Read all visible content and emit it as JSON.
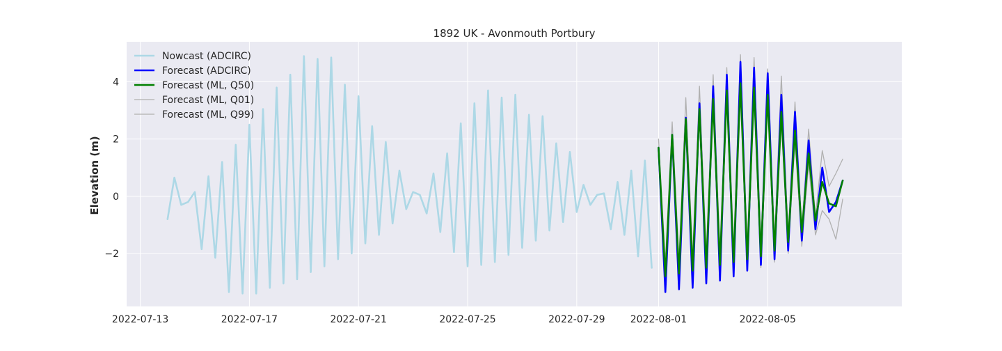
{
  "chart_data": {
    "type": "line",
    "title": "1892 UK - Avonmouth Portbury",
    "xlabel": "",
    "ylabel": "Elevation (m)",
    "xlim": [
      "2022-07-12T12:00",
      "2022-08-09T22:00"
    ],
    "ylim": [
      -3.85,
      5.4
    ],
    "grid": true,
    "legend_position": "top-left",
    "x_ticks": [
      "2022-07-13",
      "2022-07-17",
      "2022-07-21",
      "2022-07-25",
      "2022-07-29",
      "2022-08-01",
      "2022-08-05"
    ],
    "y_ticks": [
      -2,
      0,
      2,
      4
    ],
    "colors": {
      "background": "#eaeaf2",
      "grid": "#ffffff",
      "nowcast": "#add8e6",
      "forecast_adcirc": "#0000ff",
      "forecast_q50": "#008000",
      "quantiles": "#b0b0b0"
    },
    "series": [
      {
        "name": "Nowcast (ADCIRC)",
        "x": [
          "2022-07-14T00:00",
          "2022-07-14T06:00",
          "2022-07-14T12:00",
          "2022-07-14T18:00",
          "2022-07-15T00:00",
          "2022-07-15T06:00",
          "2022-07-15T12:00",
          "2022-07-15T18:00",
          "2022-07-16T00:00",
          "2022-07-16T06:00",
          "2022-07-16T12:00",
          "2022-07-16T18:00",
          "2022-07-17T00:00",
          "2022-07-17T06:00",
          "2022-07-17T12:00",
          "2022-07-17T18:00",
          "2022-07-18T00:00",
          "2022-07-18T06:00",
          "2022-07-18T12:00",
          "2022-07-18T18:00",
          "2022-07-19T00:00",
          "2022-07-19T06:00",
          "2022-07-19T12:00",
          "2022-07-19T18:00",
          "2022-07-20T00:00",
          "2022-07-20T06:00",
          "2022-07-20T12:00",
          "2022-07-20T18:00",
          "2022-07-21T00:00",
          "2022-07-21T06:00",
          "2022-07-21T12:00",
          "2022-07-21T18:00",
          "2022-07-22T00:00",
          "2022-07-22T06:00",
          "2022-07-22T12:00",
          "2022-07-22T18:00",
          "2022-07-23T00:00",
          "2022-07-23T06:00",
          "2022-07-23T12:00",
          "2022-07-23T18:00",
          "2022-07-24T00:00",
          "2022-07-24T06:00",
          "2022-07-24T12:00",
          "2022-07-24T18:00",
          "2022-07-25T00:00",
          "2022-07-25T06:00",
          "2022-07-25T12:00",
          "2022-07-25T18:00",
          "2022-07-26T00:00",
          "2022-07-26T06:00",
          "2022-07-26T12:00",
          "2022-07-26T18:00",
          "2022-07-27T00:00",
          "2022-07-27T06:00",
          "2022-07-27T12:00",
          "2022-07-27T18:00",
          "2022-07-28T00:00",
          "2022-07-28T06:00",
          "2022-07-28T12:00",
          "2022-07-28T18:00",
          "2022-07-29T00:00",
          "2022-07-29T06:00",
          "2022-07-29T12:00",
          "2022-07-29T18:00",
          "2022-07-30T00:00",
          "2022-07-30T06:00",
          "2022-07-30T12:00",
          "2022-07-30T18:00",
          "2022-07-31T00:00",
          "2022-07-31T06:00",
          "2022-07-31T12:00",
          "2022-07-31T18:00"
        ],
        "values": [
          -0.8,
          0.65,
          -0.3,
          -0.2,
          0.15,
          -1.85,
          0.7,
          -2.15,
          1.2,
          -3.35,
          1.8,
          -3.4,
          2.5,
          -3.4,
          3.05,
          -3.2,
          3.8,
          -3.05,
          4.25,
          -2.9,
          4.9,
          -2.65,
          4.8,
          -2.45,
          4.85,
          -2.2,
          3.9,
          -2.0,
          3.5,
          -1.65,
          2.45,
          -1.35,
          1.9,
          -0.95,
          0.9,
          -0.45,
          0.15,
          0.05,
          -0.6,
          0.8,
          -1.25,
          1.5,
          -1.95,
          2.55,
          -2.45,
          3.25,
          -2.4,
          3.7,
          -2.3,
          3.45,
          -2.05,
          3.55,
          -1.8,
          2.85,
          -1.55,
          2.8,
          -1.2,
          1.85,
          -0.9,
          1.55,
          -0.55,
          0.4,
          -0.3,
          0.05,
          0.1,
          -1.15,
          0.5,
          -1.35,
          0.9,
          -2.1,
          1.25,
          -2.5
        ]
      },
      {
        "name": "Forecast (ADCIRC)",
        "x": [
          "2022-08-01T00:00",
          "2022-08-01T06:00",
          "2022-08-01T12:00",
          "2022-08-01T18:00",
          "2022-08-02T00:00",
          "2022-08-02T06:00",
          "2022-08-02T12:00",
          "2022-08-02T18:00",
          "2022-08-03T00:00",
          "2022-08-03T06:00",
          "2022-08-03T12:00",
          "2022-08-03T18:00",
          "2022-08-04T00:00",
          "2022-08-04T06:00",
          "2022-08-04T12:00",
          "2022-08-04T18:00",
          "2022-08-05T00:00",
          "2022-08-05T06:00",
          "2022-08-05T12:00",
          "2022-08-05T18:00",
          "2022-08-06T00:00",
          "2022-08-06T06:00",
          "2022-08-06T12:00",
          "2022-08-06T18:00",
          "2022-08-07T00:00",
          "2022-08-07T06:00",
          "2022-08-07T12:00",
          "2022-08-07T18:00",
          "2022-08-08T00:00",
          "2022-08-08T06:00",
          "2022-08-08T12:00",
          "2022-08-08T18:00"
        ],
        "values": [
          1.7,
          -3.35,
          2.15,
          -3.25,
          2.75,
          -3.2,
          3.25,
          -3.05,
          3.85,
          -2.95,
          4.25,
          -2.8,
          4.7,
          -2.6,
          4.5,
          -2.4,
          4.3,
          -2.2,
          3.55,
          -1.9,
          2.95,
          -1.55,
          1.95,
          -1.15,
          1.0,
          -0.55,
          -0.2,
          0.55,
          null,
          null,
          null,
          null
        ]
      },
      {
        "name": "Forecast (ML, Q50)",
        "x": [
          "2022-08-01T00:00",
          "2022-08-01T06:00",
          "2022-08-01T12:00",
          "2022-08-01T18:00",
          "2022-08-02T00:00",
          "2022-08-02T06:00",
          "2022-08-02T12:00",
          "2022-08-02T18:00",
          "2022-08-03T00:00",
          "2022-08-03T06:00",
          "2022-08-03T12:00",
          "2022-08-03T18:00",
          "2022-08-04T00:00",
          "2022-08-04T06:00",
          "2022-08-04T12:00",
          "2022-08-04T18:00",
          "2022-08-05T00:00",
          "2022-08-05T06:00",
          "2022-08-05T12:00",
          "2022-08-05T18:00",
          "2022-08-06T00:00",
          "2022-08-06T06:00",
          "2022-08-06T12:00",
          "2022-08-06T18:00",
          "2022-08-07T00:00",
          "2022-08-07T06:00",
          "2022-08-07T12:00",
          "2022-08-07T18:00"
        ],
        "values": [
          1.7,
          -2.8,
          2.15,
          -2.7,
          2.7,
          -2.6,
          3.05,
          -2.5,
          3.4,
          -2.4,
          3.7,
          -2.3,
          3.95,
          -2.2,
          3.8,
          -2.1,
          3.55,
          -1.9,
          2.95,
          -1.6,
          2.3,
          -1.25,
          1.5,
          -0.85,
          0.5,
          -0.25,
          -0.35,
          0.55
        ]
      },
      {
        "name": "Forecast (ML, Q01)",
        "x": [
          "2022-08-01T00:00",
          "2022-08-01T06:00",
          "2022-08-01T12:00",
          "2022-08-01T18:00",
          "2022-08-02T00:00",
          "2022-08-02T06:00",
          "2022-08-02T12:00",
          "2022-08-02T18:00",
          "2022-08-03T00:00",
          "2022-08-03T06:00",
          "2022-08-03T12:00",
          "2022-08-03T18:00",
          "2022-08-04T00:00",
          "2022-08-04T06:00",
          "2022-08-04T12:00",
          "2022-08-04T18:00",
          "2022-08-05T00:00",
          "2022-08-05T06:00",
          "2022-08-05T12:00",
          "2022-08-05T18:00",
          "2022-08-06T00:00",
          "2022-08-06T06:00",
          "2022-08-06T12:00",
          "2022-08-06T18:00",
          "2022-08-07T00:00",
          "2022-08-07T06:00",
          "2022-08-07T12:00",
          "2022-08-07T18:00"
        ],
        "values": [
          1.5,
          -3.2,
          1.9,
          -3.1,
          2.45,
          -3.0,
          2.85,
          -2.9,
          3.2,
          -2.8,
          3.5,
          -2.7,
          3.75,
          -2.6,
          3.6,
          -2.5,
          3.3,
          -2.3,
          2.6,
          -2.0,
          1.95,
          -1.75,
          1.1,
          -1.35,
          -0.5,
          -0.8,
          -1.5,
          -0.1
        ]
      },
      {
        "name": "Forecast (ML, Q99)",
        "x": [
          "2022-08-01T00:00",
          "2022-08-01T06:00",
          "2022-08-01T12:00",
          "2022-08-01T18:00",
          "2022-08-02T00:00",
          "2022-08-02T06:00",
          "2022-08-02T12:00",
          "2022-08-02T18:00",
          "2022-08-03T00:00",
          "2022-08-03T06:00",
          "2022-08-03T12:00",
          "2022-08-03T18:00",
          "2022-08-04T00:00",
          "2022-08-04T06:00",
          "2022-08-04T12:00",
          "2022-08-04T18:00",
          "2022-08-05T00:00",
          "2022-08-05T06:00",
          "2022-08-05T12:00",
          "2022-08-05T18:00",
          "2022-08-06T00:00",
          "2022-08-06T06:00",
          "2022-08-06T12:00",
          "2022-08-06T18:00",
          "2022-08-07T00:00",
          "2022-08-07T06:00",
          "2022-08-07T12:00",
          "2022-08-07T18:00"
        ],
        "values": [
          2.0,
          -2.3,
          2.6,
          -2.2,
          3.45,
          -2.1,
          3.85,
          -2.0,
          4.25,
          -1.9,
          4.5,
          -1.8,
          4.95,
          -1.7,
          4.85,
          -1.6,
          4.45,
          -1.5,
          4.2,
          -1.3,
          3.3,
          -1.1,
          2.35,
          -0.7,
          1.6,
          0.35,
          0.8,
          1.3
        ]
      }
    ]
  }
}
